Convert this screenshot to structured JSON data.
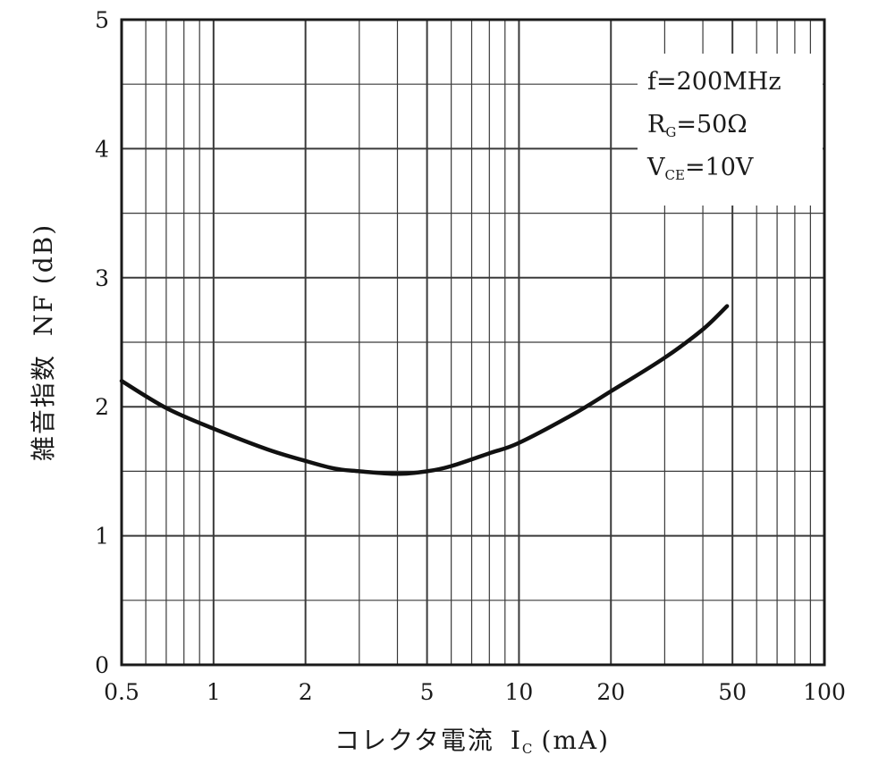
{
  "chart_data": {
    "type": "line",
    "x_scale": "log",
    "xlim": [
      0.5,
      100
    ],
    "ylim": [
      0,
      5
    ],
    "grid": true,
    "xlabel": "コレクタ電流",
    "xlabel_symbol": "I",
    "xlabel_symbol_sub": "C",
    "xlabel_unit": "(mA)",
    "ylabel": "雑音指数",
    "ylabel_symbol": "NF",
    "ylabel_unit": "(dB)",
    "x_ticks": [
      {
        "value": 0.5,
        "label": "0.5"
      },
      {
        "value": 1,
        "label": "1"
      },
      {
        "value": 2,
        "label": "2"
      },
      {
        "value": 5,
        "label": "5"
      },
      {
        "value": 10,
        "label": "10"
      },
      {
        "value": 20,
        "label": "20"
      },
      {
        "value": 50,
        "label": "50"
      },
      {
        "value": 100,
        "label": "100"
      }
    ],
    "y_ticks": [
      {
        "value": 0,
        "label": "0"
      },
      {
        "value": 1,
        "label": "1"
      },
      {
        "value": 2,
        "label": "2"
      },
      {
        "value": 3,
        "label": "3"
      },
      {
        "value": 4,
        "label": "4"
      },
      {
        "value": 5,
        "label": "5"
      }
    ],
    "annotations": {
      "freq": "f=200MHz",
      "rg_main": "R",
      "rg_sub": "G",
      "rg_value": "=50Ω",
      "vce_main": "V",
      "vce_sub": "CE",
      "vce_value": "=10V"
    },
    "series": [
      {
        "x": [
          0.5,
          0.7,
          1.0,
          1.5,
          2.0,
          2.5,
          3.0,
          4.0,
          5.0,
          6.0,
          8.0,
          10.0,
          15.0,
          20.0,
          30.0,
          40.0,
          48.0
        ],
        "y": [
          2.2,
          1.99,
          1.83,
          1.67,
          1.58,
          1.52,
          1.5,
          1.48,
          1.5,
          1.54,
          1.64,
          1.72,
          1.94,
          2.12,
          2.38,
          2.6,
          2.78
        ]
      }
    ]
  }
}
